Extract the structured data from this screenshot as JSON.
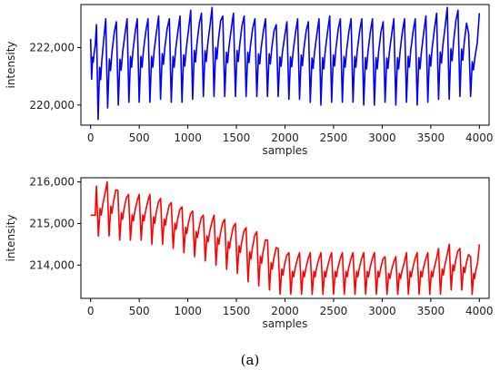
{
  "chart_data": [
    {
      "type": "line",
      "xlabel": "samples",
      "ylabel": "intensity",
      "xlim": [
        -100,
        4100
      ],
      "ylim": [
        219300,
        223500
      ],
      "x_ticks": [
        "0",
        "500",
        "1000",
        "1500",
        "2000",
        "2500",
        "3000",
        "3500",
        "4000"
      ],
      "y_ticks": [
        "220,000",
        "222,000"
      ],
      "series": [
        {
          "color": "#0000ff",
          "x": [
            0,
            60,
            155,
            265,
            375,
            480,
            590,
            700,
            810,
            920,
            1030,
            1140,
            1250,
            1360,
            1470,
            1580,
            1690,
            1800,
            1910,
            2020,
            2130,
            2240,
            2350,
            2460,
            2570,
            2680,
            2790,
            2900,
            3010,
            3120,
            3230,
            3340,
            3450,
            3560,
            3670,
            3780,
            3890,
            4000
          ],
          "peaks": [
            222300,
            222800,
            223000,
            222900,
            223000,
            223000,
            223000,
            223100,
            223000,
            223100,
            223300,
            223200,
            223400,
            223100,
            223200,
            223100,
            223000,
            223000,
            222800,
            222900,
            223000,
            222900,
            223000,
            223100,
            223000,
            223000,
            223000,
            223000,
            222900,
            223000,
            223000,
            223000,
            223100,
            223200,
            223400,
            223300,
            222500,
            223200
          ],
          "troughs": [
            220900,
            219500,
            219900,
            220000,
            220100,
            220100,
            220100,
            220200,
            220100,
            220100,
            220200,
            220300,
            220300,
            220300,
            220300,
            220300,
            220300,
            220300,
            220300,
            220200,
            220200,
            220100,
            220000,
            220100,
            220100,
            220100,
            220000,
            220000,
            220100,
            220000,
            220100,
            220000,
            220100,
            220200,
            220200,
            220300,
            220300,
            220500
          ]
        }
      ]
    },
    {
      "type": "line",
      "xlabel": "samples",
      "ylabel": "intensity",
      "xlim": [
        -100,
        4100
      ],
      "ylim": [
        213200,
        216100
      ],
      "x_ticks": [
        "0",
        "500",
        "1000",
        "1500",
        "2000",
        "2500",
        "3000",
        "3500",
        "4000"
      ],
      "y_ticks": [
        "214,000",
        "215,000",
        "216,000"
      ],
      "series": [
        {
          "color": "#ff0000",
          "x": [
            0,
            60,
            170,
            280,
            390,
            500,
            610,
            720,
            830,
            940,
            1050,
            1160,
            1270,
            1380,
            1490,
            1600,
            1710,
            1820,
            1930,
            2040,
            2150,
            2260,
            2370,
            2480,
            2590,
            2700,
            2810,
            2920,
            3030,
            3140,
            3250,
            3360,
            3470,
            3580,
            3690,
            3800,
            3910,
            4000
          ],
          "peaks": [
            215200,
            215900,
            216000,
            215800,
            215700,
            215700,
            215700,
            215600,
            215500,
            215400,
            215300,
            215200,
            215200,
            215100,
            215000,
            214900,
            214800,
            214600,
            214400,
            214300,
            214300,
            214300,
            214300,
            214300,
            214300,
            214300,
            214300,
            214300,
            214200,
            214200,
            214300,
            214300,
            214300,
            214400,
            214500,
            214400,
            214200,
            214500
          ],
          "troughs": [
            215200,
            214700,
            214700,
            214600,
            214600,
            214600,
            214500,
            214500,
            214400,
            214300,
            214200,
            214100,
            214000,
            213900,
            213800,
            213600,
            213500,
            213400,
            213300,
            213300,
            213300,
            213300,
            213300,
            213300,
            213300,
            213300,
            213300,
            213300,
            213300,
            213300,
            213300,
            213300,
            213300,
            213300,
            213400,
            213400,
            213300,
            213400
          ]
        }
      ]
    }
  ],
  "caption": "(a)"
}
